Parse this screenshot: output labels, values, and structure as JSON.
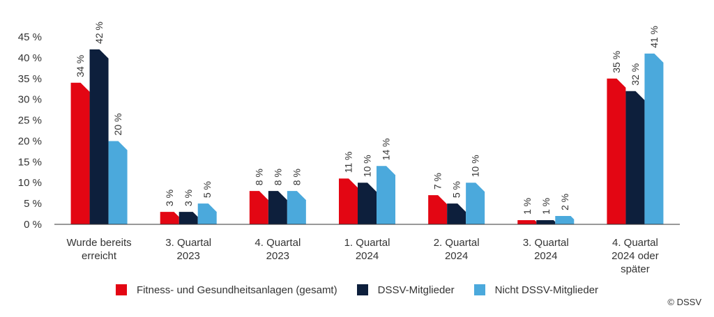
{
  "chart_data": {
    "type": "bar",
    "title": "",
    "xlabel": "",
    "ylabel": "",
    "ylim": [
      0,
      45
    ],
    "y_ticks": [
      "0 %",
      "5 %",
      "10 %",
      "15 %",
      "20 %",
      "25 %",
      "30 %",
      "35 %",
      "40 %",
      "45 %"
    ],
    "categories": [
      [
        "Wurde bereits",
        "erreicht"
      ],
      [
        "3. Quartal",
        "2023"
      ],
      [
        "4. Quartal",
        "2023"
      ],
      [
        "1. Quartal",
        "2024"
      ],
      [
        "2. Quartal",
        "2024"
      ],
      [
        "3. Quartal",
        "2024"
      ],
      [
        "4. Quartal",
        "2024 oder",
        "später"
      ]
    ],
    "series": [
      {
        "name": "Fitness- und Gesundheitsanlagen (gesamt)",
        "color": "#e30613",
        "values": [
          34,
          3,
          8,
          11,
          7,
          1,
          35
        ],
        "labels": [
          "34 %",
          "3 %",
          "8 %",
          "11 %",
          "7 %",
          "1 %",
          "35 %"
        ]
      },
      {
        "name": "DSSV-Mitglieder",
        "color": "#0d1f3c",
        "values": [
          42,
          3,
          8,
          10,
          5,
          1,
          32
        ],
        "labels": [
          "42 %",
          "3 %",
          "8 %",
          "10 %",
          "5 %",
          "1 %",
          "32 %"
        ]
      },
      {
        "name": "Nicht DSSV-Mitglieder",
        "color": "#4ba9dc",
        "values": [
          20,
          5,
          8,
          14,
          10,
          2,
          41
        ],
        "labels": [
          "20 %",
          "5 %",
          "8 %",
          "14 %",
          "10 %",
          "2 %",
          "41 %"
        ]
      }
    ],
    "grid": false,
    "legend_position": "bottom"
  },
  "copyright": "© DSSV"
}
